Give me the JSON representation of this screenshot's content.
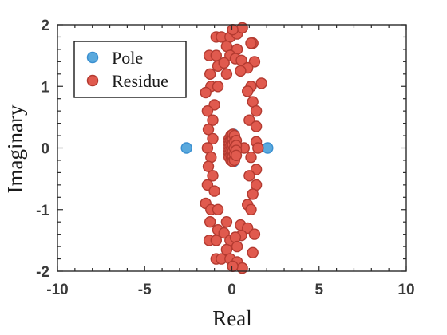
{
  "chart_data": {
    "type": "scatter",
    "title": "",
    "xlabel": "Real",
    "ylabel": "Imaginary",
    "xlim": [
      -10,
      10
    ],
    "ylim": [
      -2,
      2
    ],
    "xticks": [
      -10,
      -5,
      0,
      5,
      10
    ],
    "yticks": [
      -2,
      -1,
      0,
      1,
      2
    ],
    "xtick_labels": [
      "-10",
      "-5",
      "0",
      "5",
      "10"
    ],
    "ytick_labels": [
      "-2",
      "-1",
      "0",
      "1",
      "2"
    ],
    "grid": false,
    "legend": "top-left",
    "series": [
      {
        "name": "Pole",
        "color": "#5aa9dd",
        "edge": "#3a8fd0",
        "points": [
          [
            -2.6,
            0.0
          ],
          [
            2.05,
            0.0
          ],
          [
            0.1,
            0.22
          ],
          [
            0.1,
            0.18
          ],
          [
            0.1,
            0.14
          ],
          [
            0.1,
            0.1
          ],
          [
            0.1,
            0.06
          ],
          [
            0.1,
            0.02
          ],
          [
            0.1,
            -0.02
          ],
          [
            0.1,
            -0.06
          ],
          [
            0.1,
            -0.1
          ],
          [
            0.1,
            -0.14
          ],
          [
            0.1,
            -0.18
          ],
          [
            0.1,
            -0.22
          ],
          [
            0.0,
            0.12
          ],
          [
            0.2,
            0.12
          ],
          [
            0.0,
            -0.12
          ],
          [
            0.2,
            -0.12
          ],
          [
            0.0,
            0.0
          ],
          [
            0.2,
            0.0
          ]
        ]
      },
      {
        "name": "Residue",
        "color": "#e05a4e",
        "edge": "#b33a30",
        "points": [
          [
            -0.9,
            1.8
          ],
          [
            -0.6,
            1.8
          ],
          [
            -0.1,
            1.8
          ],
          [
            0.3,
            1.85
          ],
          [
            0.6,
            1.95
          ],
          [
            0.05,
            1.92
          ],
          [
            1.2,
            1.7
          ],
          [
            1.1,
            1.7
          ],
          [
            -0.3,
            1.65
          ],
          [
            0.3,
            1.6
          ],
          [
            -1.3,
            1.5
          ],
          [
            -0.9,
            1.5
          ],
          [
            -0.1,
            1.5
          ],
          [
            0.2,
            1.45
          ],
          [
            1.3,
            1.4
          ],
          [
            -0.8,
            1.33
          ],
          [
            -0.45,
            1.38
          ],
          [
            0.55,
            1.42
          ],
          [
            0.9,
            1.3
          ],
          [
            -1.25,
            1.2
          ],
          [
            -0.3,
            1.2
          ],
          [
            0.5,
            1.25
          ],
          [
            1.1,
            1.0
          ],
          [
            -1.2,
            1.0
          ],
          [
            -0.8,
            1.0
          ],
          [
            -1.5,
            0.9
          ],
          [
            0.9,
            0.92
          ],
          [
            1.7,
            1.05
          ],
          [
            -1.0,
            0.7
          ],
          [
            1.2,
            0.75
          ],
          [
            -1.4,
            0.6
          ],
          [
            1.4,
            0.6
          ],
          [
            -1.1,
            0.45
          ],
          [
            1.0,
            0.45
          ],
          [
            -1.35,
            0.3
          ],
          [
            1.4,
            0.35
          ],
          [
            -1.1,
            0.15
          ],
          [
            1.4,
            0.1
          ],
          [
            -1.4,
            0.0
          ],
          [
            0.7,
            0.0
          ],
          [
            1.5,
            0.0
          ],
          [
            -1.2,
            -0.15
          ],
          [
            1.1,
            -0.15
          ],
          [
            -1.35,
            -0.3
          ],
          [
            1.4,
            -0.35
          ],
          [
            -1.1,
            -0.45
          ],
          [
            1.0,
            -0.45
          ],
          [
            -1.4,
            -0.6
          ],
          [
            1.4,
            -0.6
          ],
          [
            -1.0,
            -0.7
          ],
          [
            1.2,
            -0.75
          ],
          [
            -1.5,
            -0.9
          ],
          [
            0.9,
            -0.92
          ],
          [
            -1.2,
            -1.0
          ],
          [
            -0.8,
            -1.0
          ],
          [
            1.1,
            -1.0
          ],
          [
            -1.25,
            -1.2
          ],
          [
            0.5,
            -1.25
          ],
          [
            -0.3,
            -1.2
          ],
          [
            0.9,
            -1.3
          ],
          [
            -0.8,
            -1.33
          ],
          [
            -0.45,
            -1.38
          ],
          [
            0.55,
            -1.42
          ],
          [
            -1.3,
            -1.5
          ],
          [
            -0.9,
            -1.5
          ],
          [
            -0.1,
            -1.5
          ],
          [
            0.2,
            -1.45
          ],
          [
            1.3,
            -1.4
          ],
          [
            -0.3,
            -1.65
          ],
          [
            0.3,
            -1.6
          ],
          [
            -0.9,
            -1.8
          ],
          [
            -0.6,
            -1.8
          ],
          [
            -0.1,
            -1.8
          ],
          [
            0.3,
            -1.85
          ],
          [
            0.6,
            -1.95
          ],
          [
            0.05,
            -1.92
          ],
          [
            1.2,
            -1.7
          ],
          [
            -0.15,
            0.15
          ],
          [
            -0.15,
            0.1
          ],
          [
            -0.15,
            0.05
          ],
          [
            -0.15,
            0.0
          ],
          [
            -0.15,
            -0.05
          ],
          [
            -0.15,
            -0.1
          ],
          [
            -0.15,
            -0.15
          ],
          [
            -0.05,
            0.2
          ],
          [
            -0.05,
            0.12
          ],
          [
            -0.05,
            0.04
          ],
          [
            -0.05,
            -0.04
          ],
          [
            -0.05,
            -0.12
          ],
          [
            -0.05,
            -0.2
          ],
          [
            0.05,
            0.22
          ],
          [
            0.05,
            0.14
          ],
          [
            0.05,
            0.06
          ],
          [
            0.05,
            -0.06
          ],
          [
            0.05,
            -0.14
          ],
          [
            0.05,
            -0.22
          ],
          [
            0.15,
            0.2
          ],
          [
            0.15,
            0.1
          ],
          [
            0.15,
            0.0
          ],
          [
            0.15,
            -0.1
          ],
          [
            0.15,
            -0.2
          ],
          [
            0.25,
            0.12
          ],
          [
            0.25,
            0.04
          ],
          [
            0.25,
            -0.04
          ],
          [
            0.25,
            -0.12
          ]
        ]
      }
    ]
  }
}
